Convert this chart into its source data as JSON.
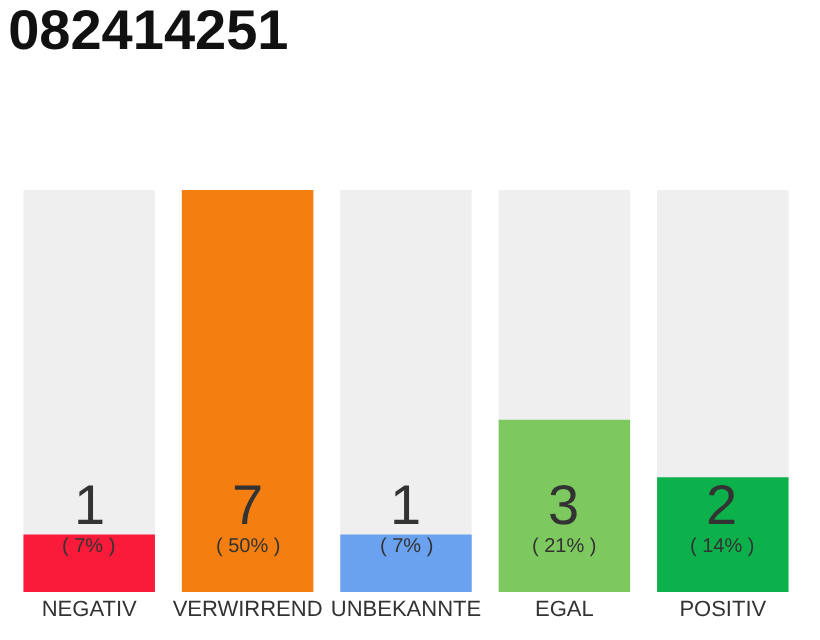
{
  "chart_data": {
    "type": "bar",
    "title": "082414251",
    "categories": [
      "NEGATIV",
      "VERWIRREND",
      "UNBEKANNTE",
      "EGAL",
      "POSITIV"
    ],
    "values": [
      1,
      7,
      1,
      3,
      2
    ],
    "colors": [
      "#fa1a3a",
      "#f47f10",
      "#6aa2ef",
      "#7ec95f",
      "#0db14b"
    ],
    "value_labels": [
      "1",
      "7",
      "1",
      "3",
      "2"
    ],
    "annotations": [
      "( 7% )",
      "( 50% )",
      "( 7% )",
      "( 21% )",
      "( 14% )"
    ],
    "grid": false
  }
}
